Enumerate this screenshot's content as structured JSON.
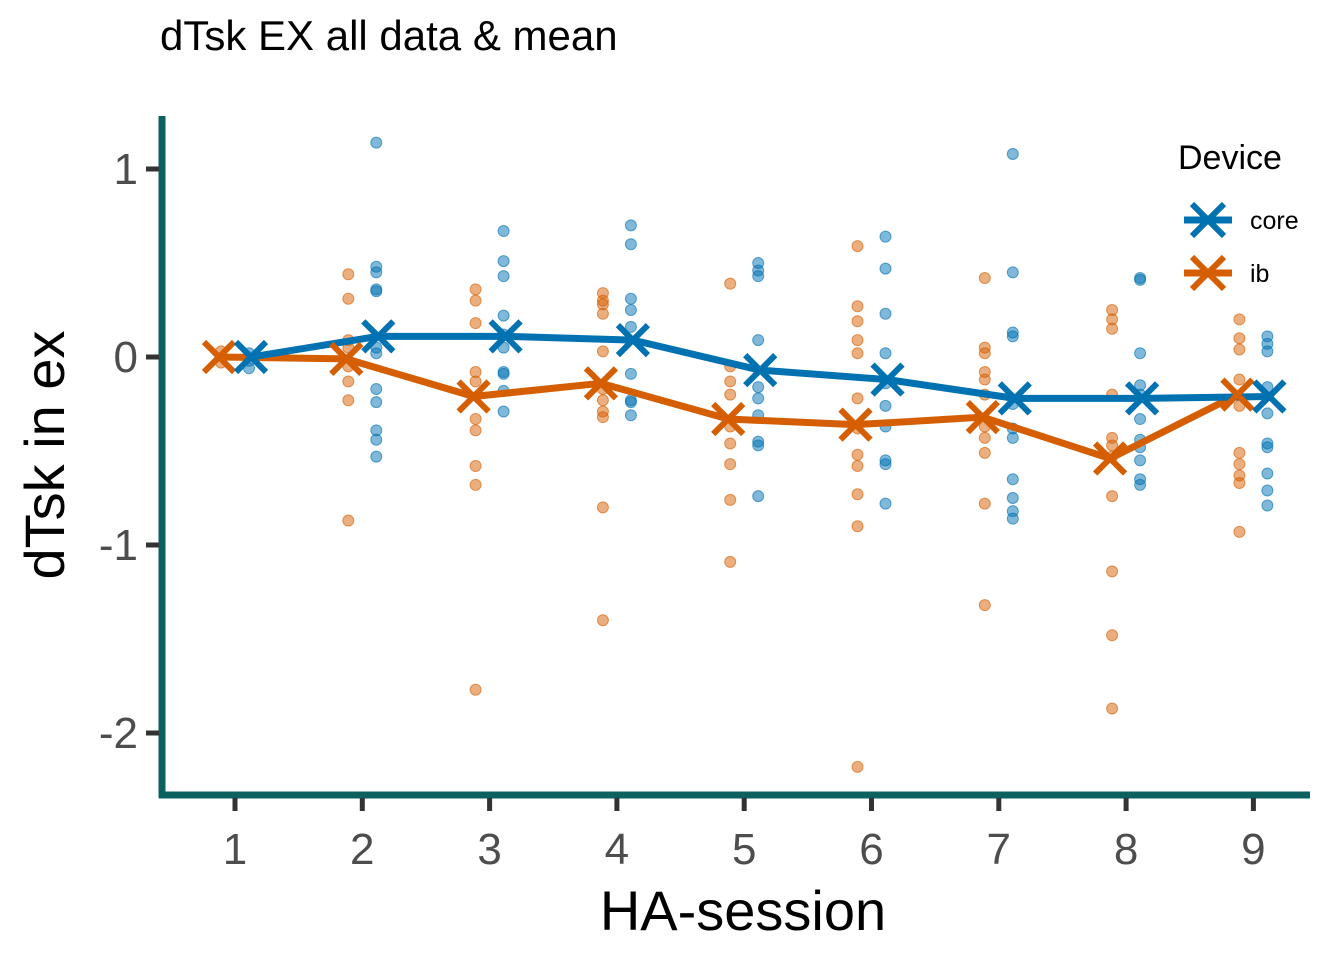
{
  "chart_data": {
    "type": "scatter",
    "title": "dTsk EX all data & mean",
    "xlabel": "HA-session",
    "ylabel": "dTsk in ex",
    "x_ticks": [
      "1",
      "2",
      "3",
      "4",
      "5",
      "6",
      "7",
      "8",
      "9"
    ],
    "y_ticks": [
      "-2",
      "-1",
      "0",
      "1"
    ],
    "xlim": [
      0.4,
      9.4
    ],
    "ylim": [
      -2.35,
      1.3
    ],
    "legend_title": "Device",
    "legend_position": "top-right",
    "grid": false,
    "colors": {
      "core": "#0072B2",
      "ib": "#D55E00",
      "axis_line": "#0B6060"
    },
    "series": [
      {
        "name": "core",
        "mean": [
          [
            1,
            0.0
          ],
          [
            2,
            0.11
          ],
          [
            3,
            0.11
          ],
          [
            4,
            0.09
          ],
          [
            5,
            -0.07
          ],
          [
            6,
            -0.12
          ],
          [
            7,
            -0.22
          ],
          [
            8,
            -0.22
          ],
          [
            9,
            -0.21
          ]
        ],
        "points": [
          [
            1,
            0.02
          ],
          [
            1,
            -0.02
          ],
          [
            1,
            -0.06
          ],
          [
            2,
            1.14
          ],
          [
            2,
            0.48
          ],
          [
            2,
            0.45
          ],
          [
            2,
            0.36
          ],
          [
            2,
            0.35
          ],
          [
            2,
            0.05
          ],
          [
            2,
            0.02
          ],
          [
            2,
            -0.17
          ],
          [
            2,
            -0.24
          ],
          [
            2,
            -0.39
          ],
          [
            2,
            -0.44
          ],
          [
            2,
            -0.53
          ],
          [
            3,
            0.67
          ],
          [
            3,
            0.51
          ],
          [
            3,
            0.43
          ],
          [
            3,
            0.22
          ],
          [
            3,
            0.12
          ],
          [
            3,
            0.05
          ],
          [
            3,
            -0.08
          ],
          [
            3,
            -0.09
          ],
          [
            3,
            -0.18
          ],
          [
            3,
            -0.29
          ],
          [
            4,
            0.7
          ],
          [
            4,
            0.6
          ],
          [
            4,
            0.31
          ],
          [
            4,
            0.25
          ],
          [
            4,
            0.16
          ],
          [
            4,
            -0.09
          ],
          [
            4,
            -0.23
          ],
          [
            4,
            -0.24
          ],
          [
            4,
            -0.31
          ],
          [
            5,
            0.5
          ],
          [
            5,
            0.46
          ],
          [
            5,
            0.43
          ],
          [
            5,
            0.09
          ],
          [
            5,
            -0.16
          ],
          [
            5,
            -0.22
          ],
          [
            5,
            -0.31
          ],
          [
            5,
            -0.45
          ],
          [
            5,
            -0.47
          ],
          [
            5,
            -0.74
          ],
          [
            6,
            0.64
          ],
          [
            6,
            0.47
          ],
          [
            6,
            0.23
          ],
          [
            6,
            0.02
          ],
          [
            6,
            -0.14
          ],
          [
            6,
            -0.26
          ],
          [
            6,
            -0.37
          ],
          [
            6,
            -0.55
          ],
          [
            6,
            -0.57
          ],
          [
            6,
            -0.78
          ],
          [
            7,
            1.08
          ],
          [
            7,
            0.45
          ],
          [
            7,
            0.13
          ],
          [
            7,
            0.11
          ],
          [
            7,
            -0.25
          ],
          [
            7,
            -0.38
          ],
          [
            7,
            -0.43
          ],
          [
            7,
            -0.65
          ],
          [
            7,
            -0.75
          ],
          [
            7,
            -0.82
          ],
          [
            7,
            -0.86
          ],
          [
            8,
            0.42
          ],
          [
            8,
            0.41
          ],
          [
            8,
            0.02
          ],
          [
            8,
            -0.15
          ],
          [
            8,
            -0.2
          ],
          [
            8,
            -0.33
          ],
          [
            8,
            -0.44
          ],
          [
            8,
            -0.48
          ],
          [
            8,
            -0.55
          ],
          [
            8,
            -0.65
          ],
          [
            8,
            -0.68
          ],
          [
            9,
            0.11
          ],
          [
            9,
            0.07
          ],
          [
            9,
            0.03
          ],
          [
            9,
            -0.16
          ],
          [
            9,
            -0.3
          ],
          [
            9,
            -0.46
          ],
          [
            9,
            -0.48
          ],
          [
            9,
            -0.62
          ],
          [
            9,
            -0.71
          ],
          [
            9,
            -0.79
          ]
        ]
      },
      {
        "name": "ib",
        "mean": [
          [
            1,
            0.0
          ],
          [
            2,
            -0.01
          ],
          [
            3,
            -0.21
          ],
          [
            4,
            -0.14
          ],
          [
            5,
            -0.33
          ],
          [
            6,
            -0.36
          ],
          [
            7,
            -0.32
          ],
          [
            8,
            -0.54
          ],
          [
            9,
            -0.2
          ]
        ],
        "points": [
          [
            1,
            0.03
          ],
          [
            1,
            -0.03
          ],
          [
            2,
            0.44
          ],
          [
            2,
            0.31
          ],
          [
            2,
            0.09
          ],
          [
            2,
            0.05
          ],
          [
            2,
            -0.05
          ],
          [
            2,
            -0.13
          ],
          [
            2,
            -0.23
          ],
          [
            2,
            -0.87
          ],
          [
            3,
            0.36
          ],
          [
            3,
            0.3
          ],
          [
            3,
            0.18
          ],
          [
            3,
            -0.08
          ],
          [
            3,
            -0.13
          ],
          [
            3,
            -0.33
          ],
          [
            3,
            -0.39
          ],
          [
            3,
            -0.58
          ],
          [
            3,
            -0.68
          ],
          [
            3,
            -1.77
          ],
          [
            4,
            0.34
          ],
          [
            4,
            0.3
          ],
          [
            4,
            0.28
          ],
          [
            4,
            0.23
          ],
          [
            4,
            0.03
          ],
          [
            4,
            -0.17
          ],
          [
            4,
            -0.23
          ],
          [
            4,
            -0.29
          ],
          [
            4,
            -0.32
          ],
          [
            4,
            -0.8
          ],
          [
            4,
            -1.4
          ],
          [
            5,
            0.39
          ],
          [
            5,
            -0.05
          ],
          [
            5,
            -0.13
          ],
          [
            5,
            -0.2
          ],
          [
            5,
            -0.37
          ],
          [
            5,
            -0.46
          ],
          [
            5,
            -0.57
          ],
          [
            5,
            -0.76
          ],
          [
            5,
            -1.09
          ],
          [
            6,
            0.59
          ],
          [
            6,
            0.27
          ],
          [
            6,
            0.19
          ],
          [
            6,
            0.09
          ],
          [
            6,
            0.02
          ],
          [
            6,
            -0.22
          ],
          [
            6,
            -0.38
          ],
          [
            6,
            -0.52
          ],
          [
            6,
            -0.58
          ],
          [
            6,
            -0.73
          ],
          [
            6,
            -0.9
          ],
          [
            6,
            -2.18
          ],
          [
            7,
            0.42
          ],
          [
            7,
            0.05
          ],
          [
            7,
            0.02
          ],
          [
            7,
            -0.08
          ],
          [
            7,
            -0.12
          ],
          [
            7,
            -0.2
          ],
          [
            7,
            -0.37
          ],
          [
            7,
            -0.43
          ],
          [
            7,
            -0.51
          ],
          [
            7,
            -0.78
          ],
          [
            7,
            -1.32
          ],
          [
            8,
            0.25
          ],
          [
            8,
            0.2
          ],
          [
            8,
            0.15
          ],
          [
            8,
            -0.2
          ],
          [
            8,
            -0.43
          ],
          [
            8,
            -0.47
          ],
          [
            8,
            -0.53
          ],
          [
            8,
            -0.74
          ],
          [
            8,
            -1.14
          ],
          [
            8,
            -1.48
          ],
          [
            8,
            -1.87
          ],
          [
            9,
            0.2
          ],
          [
            9,
            0.1
          ],
          [
            9,
            0.04
          ],
          [
            9,
            -0.12
          ],
          [
            9,
            -0.26
          ],
          [
            9,
            -0.51
          ],
          [
            9,
            -0.57
          ],
          [
            9,
            -0.63
          ],
          [
            9,
            -0.67
          ],
          [
            9,
            -0.93
          ]
        ]
      }
    ]
  }
}
